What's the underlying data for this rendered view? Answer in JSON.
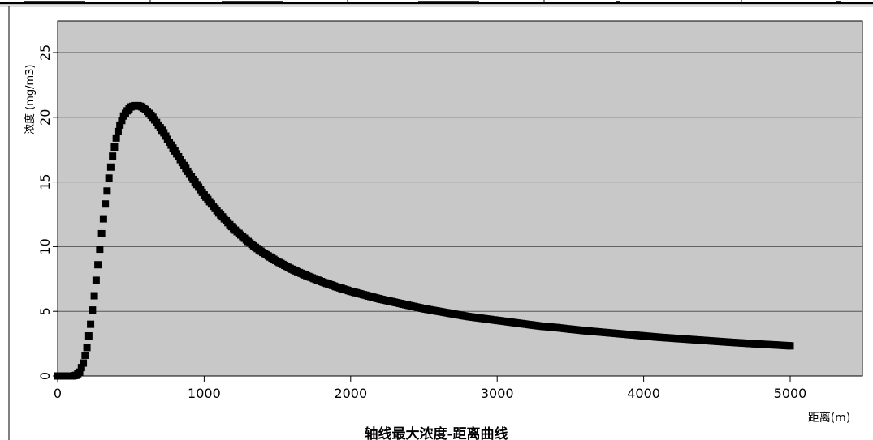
{
  "chart_data": {
    "type": "scatter",
    "title": "轴线最大浓度-距离曲线",
    "xlabel": "距离(m)",
    "ylabel": "浓度 (mg/m3)",
    "xlim": [
      0,
      5500
    ],
    "ylim": [
      -0.5,
      27.5
    ],
    "xticks": [
      0,
      1000,
      2000,
      3000,
      4000,
      5000
    ],
    "yticks": [
      0,
      5,
      10,
      15,
      20,
      25
    ],
    "grid": "horizontal",
    "background": "#c8c8c8",
    "marker_color": "#000000",
    "series": [
      {
        "x": [
          0,
          25,
          50,
          75,
          100,
          125,
          150,
          175,
          200,
          225,
          250,
          275,
          300,
          325,
          350,
          375,
          400,
          425,
          450,
          475,
          500,
          525,
          550,
          575,
          600,
          625,
          650,
          675,
          700,
          725,
          750,
          800,
          850,
          900,
          950,
          1000,
          1050,
          1100,
          1150,
          1200,
          1250,
          1300,
          1350,
          1400,
          1450,
          1500,
          1600,
          1700,
          1800,
          1900,
          2000,
          2100,
          2200,
          2300,
          2400,
          2500,
          2600,
          2700,
          2800,
          2900,
          3000,
          3100,
          3200,
          3300,
          3400,
          3500,
          3600,
          3700,
          3800,
          3900,
          4000,
          4100,
          4200,
          4300,
          4400,
          4500,
          4600,
          4700,
          4800,
          4900,
          5000
        ],
        "y": [
          0,
          0,
          0,
          0,
          0,
          0.05,
          0.3,
          1.0,
          2.2,
          4.0,
          6.2,
          8.6,
          11.0,
          13.3,
          15.3,
          17.0,
          18.4,
          19.4,
          20.1,
          20.5,
          20.8,
          20.9,
          20.9,
          20.8,
          20.6,
          20.3,
          20.0,
          19.6,
          19.2,
          18.8,
          18.3,
          17.4,
          16.5,
          15.6,
          14.8,
          14.0,
          13.3,
          12.6,
          12.0,
          11.4,
          10.9,
          10.4,
          9.95,
          9.55,
          9.2,
          8.85,
          8.25,
          7.75,
          7.3,
          6.9,
          6.55,
          6.25,
          5.95,
          5.7,
          5.45,
          5.2,
          5.0,
          4.8,
          4.6,
          4.45,
          4.3,
          4.15,
          4.0,
          3.85,
          3.75,
          3.62,
          3.5,
          3.4,
          3.3,
          3.2,
          3.1,
          3.0,
          2.92,
          2.84,
          2.76,
          2.68,
          2.6,
          2.53,
          2.46,
          2.4,
          2.33
        ]
      }
    ]
  },
  "table_header": {
    "cells": [
      "",
      "",
      "",
      "",
      ""
    ]
  }
}
